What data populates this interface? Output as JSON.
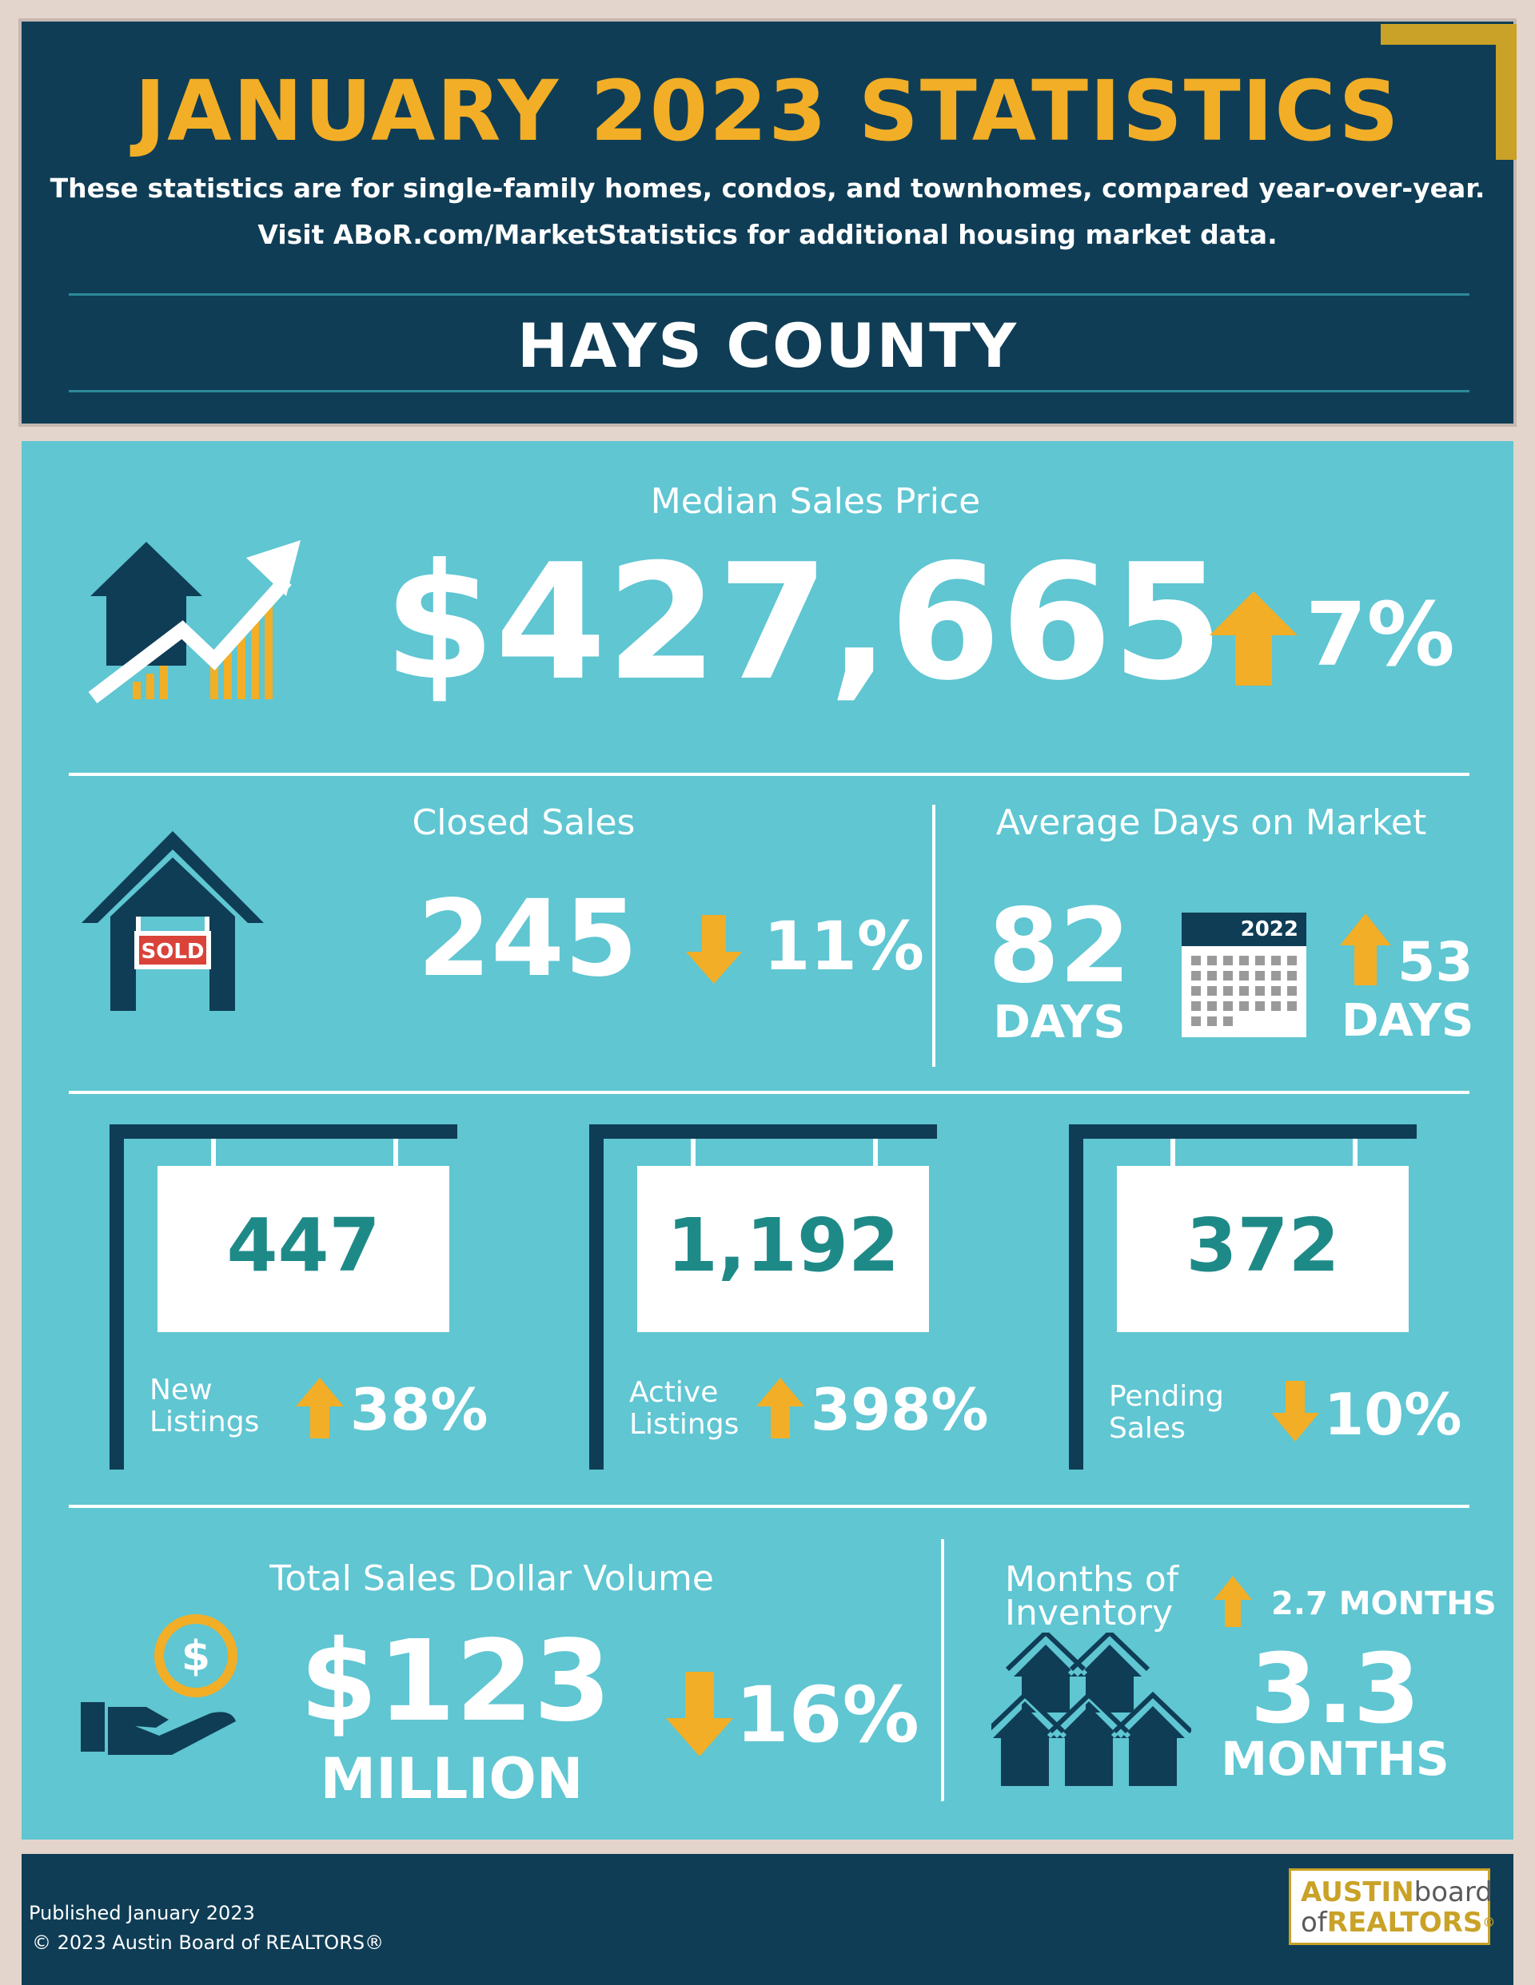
{
  "header": {
    "title": "JANUARY 2023 STATISTICS",
    "subtitle_line1": "These statistics are for single-family homes, condos, and townhomes, compared year-over-year.",
    "subtitle_line2": "Visit ABoR.com/MarketStatistics for additional housing market data.",
    "county": "HAYS COUNTY"
  },
  "median": {
    "label": "Median Sales Price",
    "value": "$427,665",
    "change": "7%",
    "direction": "up",
    "icon": "house-growth-chart-icon"
  },
  "closed": {
    "label": "Closed Sales",
    "value": "245",
    "change": "11%",
    "direction": "down",
    "sign_text": "SOLD",
    "icon": "sold-house-icon"
  },
  "dom": {
    "label": "Average Days on Market",
    "value": "82",
    "unit": "DAYS",
    "calendar_year": "2022",
    "prev_value": "53",
    "prev_unit": "DAYS",
    "direction": "up",
    "icon": "calendar-icon"
  },
  "signs": [
    {
      "value": "447",
      "label_line1": "New",
      "label_line2": "Listings",
      "change": "38%",
      "direction": "up"
    },
    {
      "value": "1,192",
      "label_line1": "Active",
      "label_line2": "Listings",
      "change": "398%",
      "direction": "up"
    },
    {
      "value": "372",
      "label_line1": "Pending",
      "label_line2": "Sales",
      "change": "10%",
      "direction": "down"
    }
  ],
  "volume": {
    "label": "Total Sales Dollar Volume",
    "value": "$123",
    "unit": "MILLION",
    "change": "16%",
    "direction": "down",
    "icon": "hand-coin-icon",
    "coin_symbol": "$"
  },
  "inventory": {
    "label_line1": "Months of",
    "label_line2": "Inventory",
    "prev": "2.7 MONTHS",
    "value": "3.3",
    "unit": "MONTHS",
    "direction": "up",
    "icon": "houses-cluster-icon"
  },
  "footer": {
    "published": "Published January 2023",
    "copyright": "© 2023 Austin Board of REALTORS®",
    "logo_line1_a": "AUSTIN",
    "logo_line1_b": "board",
    "logo_line2_a": "of",
    "logo_line2_b": "REALTORS",
    "logo_reg": "®"
  },
  "colors": {
    "navy": "#0f3d56",
    "teal": "#5fc6d2",
    "gold": "#f2ae26",
    "sign_number": "#1e8a88"
  }
}
